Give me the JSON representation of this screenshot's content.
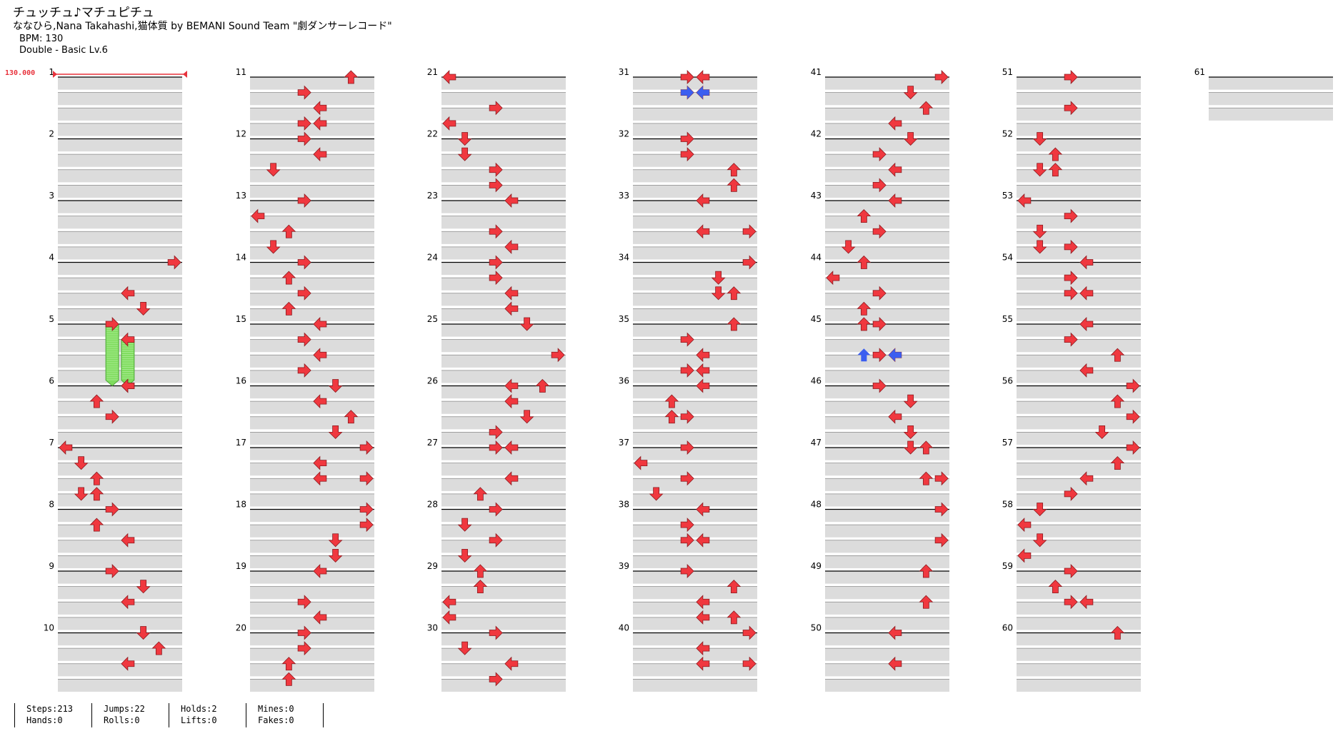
{
  "song": {
    "title": "チュッチュ♪マチュピチュ",
    "artist": "ななひら,Nana Takahashi,猫体質 by BEMANI Sound Team \"劇ダンサーレコード\"",
    "bpm_label": "BPM: 130",
    "difficulty_label": "Double - Basic  Lv.6",
    "bpm_marker": "130.000"
  },
  "stats": {
    "steps": "Steps:213",
    "hands": "Hands:0",
    "jumps": "Jumps:22",
    "rolls": "Rolls:0",
    "holds": "Holds:2",
    "lifts": "Lifts:0",
    "mines": "Mines:0",
    "fakes": "Fakes:0"
  },
  "colors": {
    "note_red": "#f0383f",
    "note_blue": "#3b5ef0",
    "hold_green": "#7fdc5e",
    "measure_fill": "#dcdcdc",
    "bpm_line": "#e8323c"
  },
  "chart_data": {
    "type": "step-chart",
    "measures_per_column": 10,
    "total_measure_labels": 61,
    "lanes": [
      "L",
      "D",
      "U",
      "R",
      "L",
      "D",
      "U",
      "R"
    ],
    "notes": [
      [
        4,
        0,
        7,
        "R"
      ],
      [
        4,
        2,
        4,
        "L"
      ],
      [
        4,
        3,
        5,
        "D"
      ],
      [
        5,
        0,
        3,
        "R"
      ],
      [
        5,
        1,
        4,
        "L"
      ],
      [
        5,
        4,
        4,
        "L"
      ],
      [
        6,
        0,
        4,
        "L"
      ],
      [
        6,
        1,
        2,
        "U"
      ],
      [
        6,
        2,
        3,
        "R"
      ],
      [
        7,
        0,
        0,
        "L"
      ],
      [
        7,
        1,
        1,
        "D"
      ],
      [
        7,
        2,
        2,
        "U"
      ],
      [
        7,
        3,
        1,
        "D"
      ],
      [
        7,
        3,
        2,
        "U"
      ],
      [
        8,
        0,
        3,
        "R"
      ],
      [
        8,
        1,
        2,
        "U"
      ],
      [
        8,
        2,
        4,
        "L"
      ],
      [
        9,
        0,
        3,
        "R"
      ],
      [
        9,
        1,
        5,
        "D"
      ],
      [
        9,
        2,
        4,
        "L"
      ],
      [
        10,
        0,
        5,
        "D"
      ],
      [
        10,
        1,
        6,
        "U"
      ],
      [
        10,
        2,
        4,
        "L"
      ],
      [
        11,
        0,
        6,
        "U"
      ],
      [
        11,
        1,
        3,
        "R"
      ],
      [
        11,
        2,
        4,
        "L"
      ],
      [
        11,
        3,
        3,
        "R"
      ],
      [
        11,
        3,
        4,
        "L"
      ],
      [
        12,
        0,
        3,
        "R"
      ],
      [
        12,
        1,
        4,
        "L"
      ],
      [
        12,
        2,
        1,
        "D"
      ],
      [
        13,
        0,
        3,
        "R"
      ],
      [
        13,
        1,
        0,
        "L"
      ],
      [
        13,
        2,
        2,
        "U"
      ],
      [
        13,
        3,
        1,
        "D"
      ],
      [
        14,
        0,
        3,
        "R"
      ],
      [
        14,
        1,
        2,
        "U"
      ],
      [
        14,
        2,
        3,
        "R"
      ],
      [
        14,
        3,
        2,
        "U"
      ],
      [
        15,
        0,
        4,
        "L"
      ],
      [
        15,
        1,
        3,
        "R"
      ],
      [
        15,
        2,
        4,
        "L"
      ],
      [
        15,
        3,
        3,
        "R"
      ],
      [
        16,
        0,
        5,
        "D"
      ],
      [
        16,
        1,
        4,
        "L"
      ],
      [
        16,
        2,
        6,
        "U"
      ],
      [
        16,
        3,
        5,
        "D"
      ],
      [
        17,
        0,
        7,
        "R"
      ],
      [
        17,
        1,
        4,
        "L"
      ],
      [
        17,
        2,
        4,
        "L"
      ],
      [
        17,
        2,
        7,
        "R"
      ],
      [
        18,
        0,
        7,
        "R"
      ],
      [
        18,
        1,
        7,
        "R"
      ],
      [
        18,
        2,
        5,
        "D"
      ],
      [
        18,
        3,
        5,
        "D"
      ],
      [
        19,
        0,
        4,
        "L"
      ],
      [
        19,
        2,
        3,
        "R"
      ],
      [
        19,
        3,
        4,
        "L"
      ],
      [
        20,
        0,
        3,
        "R"
      ],
      [
        20,
        1,
        3,
        "R"
      ],
      [
        20,
        2,
        2,
        "U"
      ],
      [
        20,
        3,
        2,
        "U"
      ],
      [
        21,
        0,
        0,
        "L"
      ],
      [
        21,
        2,
        3,
        "R"
      ],
      [
        21,
        3,
        0,
        "L"
      ],
      [
        22,
        0,
        1,
        "D"
      ],
      [
        22,
        1,
        1,
        "D"
      ],
      [
        22,
        2,
        3,
        "R"
      ],
      [
        22,
        3,
        3,
        "R"
      ],
      [
        23,
        0,
        4,
        "L"
      ],
      [
        23,
        2,
        3,
        "R"
      ],
      [
        23,
        3,
        4,
        "L"
      ],
      [
        24,
        0,
        3,
        "R"
      ],
      [
        24,
        1,
        3,
        "R"
      ],
      [
        24,
        2,
        4,
        "L"
      ],
      [
        24,
        3,
        4,
        "L"
      ],
      [
        25,
        0,
        5,
        "D"
      ],
      [
        25,
        2,
        7,
        "R"
      ],
      [
        26,
        0,
        4,
        "L"
      ],
      [
        26,
        0,
        6,
        "U"
      ],
      [
        26,
        1,
        4,
        "L"
      ],
      [
        26,
        2,
        5,
        "D"
      ],
      [
        26,
        3,
        3,
        "R"
      ],
      [
        27,
        0,
        3,
        "R"
      ],
      [
        27,
        0,
        4,
        "L"
      ],
      [
        27,
        2,
        4,
        "L"
      ],
      [
        27,
        3,
        2,
        "U"
      ],
      [
        28,
        0,
        3,
        "R"
      ],
      [
        28,
        1,
        1,
        "D"
      ],
      [
        28,
        2,
        3,
        "R"
      ],
      [
        28,
        3,
        1,
        "D"
      ],
      [
        29,
        0,
        2,
        "U"
      ],
      [
        29,
        1,
        2,
        "U"
      ],
      [
        29,
        2,
        0,
        "L"
      ],
      [
        29,
        3,
        0,
        "L"
      ],
      [
        30,
        0,
        3,
        "R"
      ],
      [
        30,
        1,
        1,
        "D"
      ],
      [
        30,
        2,
        4,
        "L"
      ],
      [
        30,
        3,
        3,
        "R"
      ],
      [
        31,
        0,
        3,
        "R"
      ],
      [
        31,
        0,
        4,
        "L"
      ],
      [
        31,
        1,
        3,
        "R"
      ],
      [
        31,
        1,
        4,
        "L"
      ],
      [
        32,
        0,
        3,
        "R"
      ],
      [
        32,
        1,
        3,
        "R"
      ],
      [
        32,
        2,
        6,
        "U"
      ],
      [
        32,
        3,
        6,
        "U"
      ],
      [
        33,
        0,
        4,
        "L"
      ],
      [
        33,
        2,
        4,
        "L"
      ],
      [
        33,
        2,
        7,
        "R"
      ],
      [
        34,
        0,
        7,
        "R"
      ],
      [
        34,
        1,
        5,
        "D"
      ],
      [
        34,
        2,
        5,
        "D"
      ],
      [
        34,
        2,
        6,
        "U"
      ],
      [
        35,
        0,
        6,
        "U"
      ],
      [
        35,
        1,
        3,
        "R"
      ],
      [
        35,
        2,
        4,
        "L"
      ],
      [
        35,
        3,
        3,
        "R"
      ],
      [
        35,
        3,
        4,
        "L"
      ],
      [
        36,
        0,
        4,
        "L"
      ],
      [
        36,
        1,
        2,
        "U"
      ],
      [
        36,
        2,
        2,
        "U"
      ],
      [
        36,
        2,
        3,
        "R"
      ],
      [
        37,
        0,
        3,
        "R"
      ],
      [
        37,
        1,
        0,
        "L"
      ],
      [
        37,
        2,
        3,
        "R"
      ],
      [
        37,
        3,
        1,
        "D"
      ],
      [
        38,
        0,
        4,
        "L"
      ],
      [
        38,
        1,
        3,
        "R"
      ],
      [
        38,
        2,
        3,
        "R"
      ],
      [
        38,
        2,
        4,
        "L"
      ],
      [
        39,
        0,
        3,
        "R"
      ],
      [
        39,
        1,
        6,
        "U"
      ],
      [
        39,
        2,
        4,
        "L"
      ],
      [
        39,
        3,
        4,
        "L"
      ],
      [
        39,
        3,
        6,
        "U"
      ],
      [
        40,
        0,
        7,
        "R"
      ],
      [
        40,
        1,
        4,
        "L"
      ],
      [
        40,
        2,
        4,
        "L"
      ],
      [
        40,
        2,
        7,
        "R"
      ],
      [
        41,
        0,
        7,
        "R"
      ],
      [
        41,
        1,
        5,
        "D"
      ],
      [
        41,
        2,
        6,
        "U"
      ],
      [
        41,
        3,
        4,
        "L"
      ],
      [
        42,
        0,
        5,
        "D"
      ],
      [
        42,
        1,
        3,
        "R"
      ],
      [
        42,
        2,
        4,
        "L"
      ],
      [
        42,
        3,
        3,
        "R"
      ],
      [
        43,
        0,
        4,
        "L"
      ],
      [
        43,
        1,
        2,
        "U"
      ],
      [
        43,
        2,
        3,
        "R"
      ],
      [
        43,
        3,
        1,
        "D"
      ],
      [
        44,
        0,
        2,
        "U"
      ],
      [
        44,
        1,
        0,
        "L"
      ],
      [
        44,
        2,
        3,
        "R"
      ],
      [
        44,
        3,
        2,
        "U"
      ],
      [
        45,
        0,
        2,
        "U"
      ],
      [
        45,
        0,
        3,
        "R"
      ],
      [
        45,
        2,
        3,
        "R"
      ],
      [
        45,
        2,
        4,
        "L"
      ],
      [
        46,
        0,
        3,
        "R"
      ],
      [
        46,
        1,
        5,
        "D"
      ],
      [
        46,
        2,
        4,
        "L"
      ],
      [
        46,
        3,
        5,
        "D"
      ],
      [
        47,
        0,
        5,
        "D"
      ],
      [
        47,
        0,
        6,
        "U"
      ],
      [
        47,
        2,
        6,
        "U"
      ],
      [
        47,
        2,
        7,
        "R"
      ],
      [
        48,
        0,
        7,
        "R"
      ],
      [
        48,
        2,
        7,
        "R"
      ],
      [
        49,
        0,
        6,
        "U"
      ],
      [
        49,
        2,
        6,
        "U"
      ],
      [
        50,
        0,
        4,
        "L"
      ],
      [
        50,
        2,
        4,
        "L"
      ],
      [
        51,
        0,
        3,
        "R"
      ],
      [
        51,
        2,
        3,
        "R"
      ],
      [
        52,
        0,
        1,
        "D"
      ],
      [
        52,
        1,
        2,
        "U"
      ],
      [
        52,
        2,
        1,
        "D"
      ],
      [
        52,
        2,
        2,
        "U"
      ],
      [
        53,
        0,
        0,
        "L"
      ],
      [
        53,
        1,
        3,
        "R"
      ],
      [
        53,
        2,
        1,
        "D"
      ],
      [
        53,
        3,
        1,
        "D"
      ],
      [
        53,
        3,
        3,
        "R"
      ],
      [
        54,
        0,
        4,
        "L"
      ],
      [
        54,
        1,
        3,
        "R"
      ],
      [
        54,
        2,
        3,
        "R"
      ],
      [
        54,
        2,
        4,
        "L"
      ],
      [
        55,
        0,
        4,
        "L"
      ],
      [
        55,
        1,
        3,
        "R"
      ],
      [
        55,
        2,
        6,
        "U"
      ],
      [
        55,
        3,
        4,
        "L"
      ],
      [
        56,
        0,
        7,
        "R"
      ],
      [
        56,
        1,
        6,
        "U"
      ],
      [
        56,
        2,
        7,
        "R"
      ],
      [
        56,
        3,
        5,
        "D"
      ],
      [
        57,
        0,
        7,
        "R"
      ],
      [
        57,
        1,
        6,
        "U"
      ],
      [
        57,
        2,
        4,
        "L"
      ],
      [
        57,
        3,
        3,
        "R"
      ],
      [
        58,
        0,
        1,
        "D"
      ],
      [
        58,
        1,
        0,
        "L"
      ],
      [
        58,
        2,
        1,
        "D"
      ],
      [
        58,
        3,
        0,
        "L"
      ],
      [
        59,
        0,
        3,
        "R"
      ],
      [
        59,
        1,
        2,
        "U"
      ],
      [
        59,
        2,
        3,
        "R"
      ],
      [
        59,
        2,
        4,
        "L"
      ],
      [
        60,
        0,
        6,
        "U"
      ]
    ],
    "blue_notes": [
      [
        31,
        1,
        3,
        "R"
      ],
      [
        31,
        1,
        4,
        "L"
      ],
      [
        45,
        2,
        2,
        "U"
      ],
      [
        45,
        2,
        4,
        "L"
      ]
    ],
    "holds": [
      {
        "measure": 5,
        "beat": 0,
        "lane": 3,
        "beats": 4
      },
      {
        "measure": 5,
        "beat": 1,
        "lane": 4,
        "beats": 3
      }
    ]
  }
}
